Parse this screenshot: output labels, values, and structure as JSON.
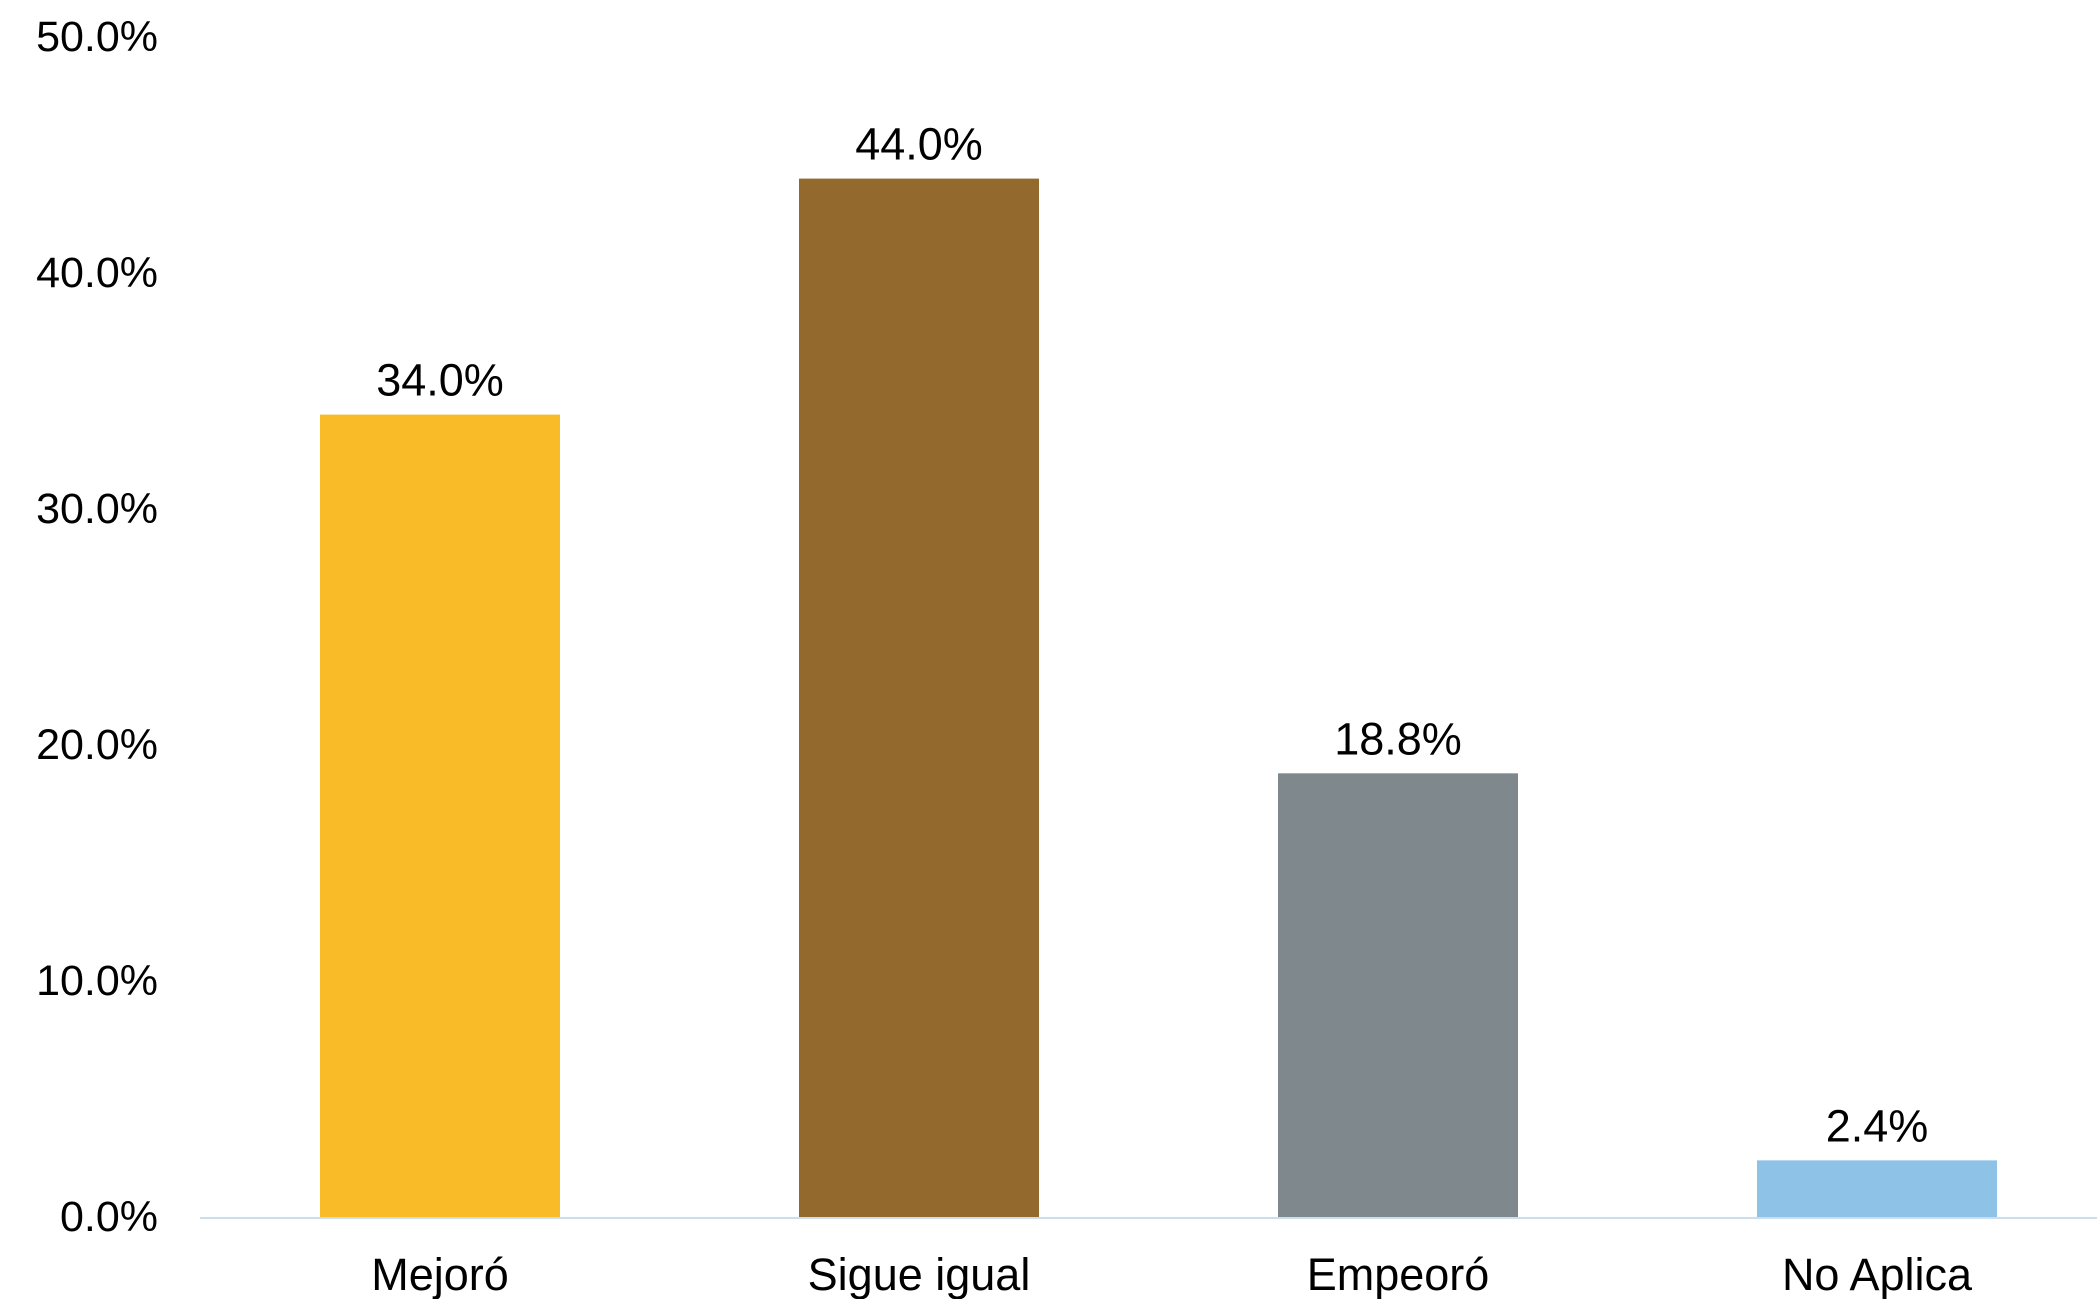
{
  "chart_data": {
    "type": "bar",
    "title": "",
    "xlabel": "",
    "ylabel": "",
    "categories": [
      "Mejoró",
      "Sigue igual",
      "Empeoró",
      "No Aplica"
    ],
    "values": [
      34.0,
      44.0,
      18.8,
      2.4
    ],
    "data_labels": [
      "34.0%",
      "44.0%",
      "18.8%",
      "2.4%"
    ],
    "colors": [
      "#FABB29",
      "#94692D",
      "#7F888D",
      "#8EC2E7"
    ],
    "ylim": [
      0,
      50
    ],
    "yticks": [
      0,
      10,
      20,
      30,
      40,
      50
    ],
    "ytick_labels": [
      "0.0%",
      "10.0%",
      "20.0%",
      "30.0%",
      "40.0%",
      "50.0%"
    ],
    "axis_color": "#CCDDEE",
    "grid": false,
    "legend": "none"
  }
}
